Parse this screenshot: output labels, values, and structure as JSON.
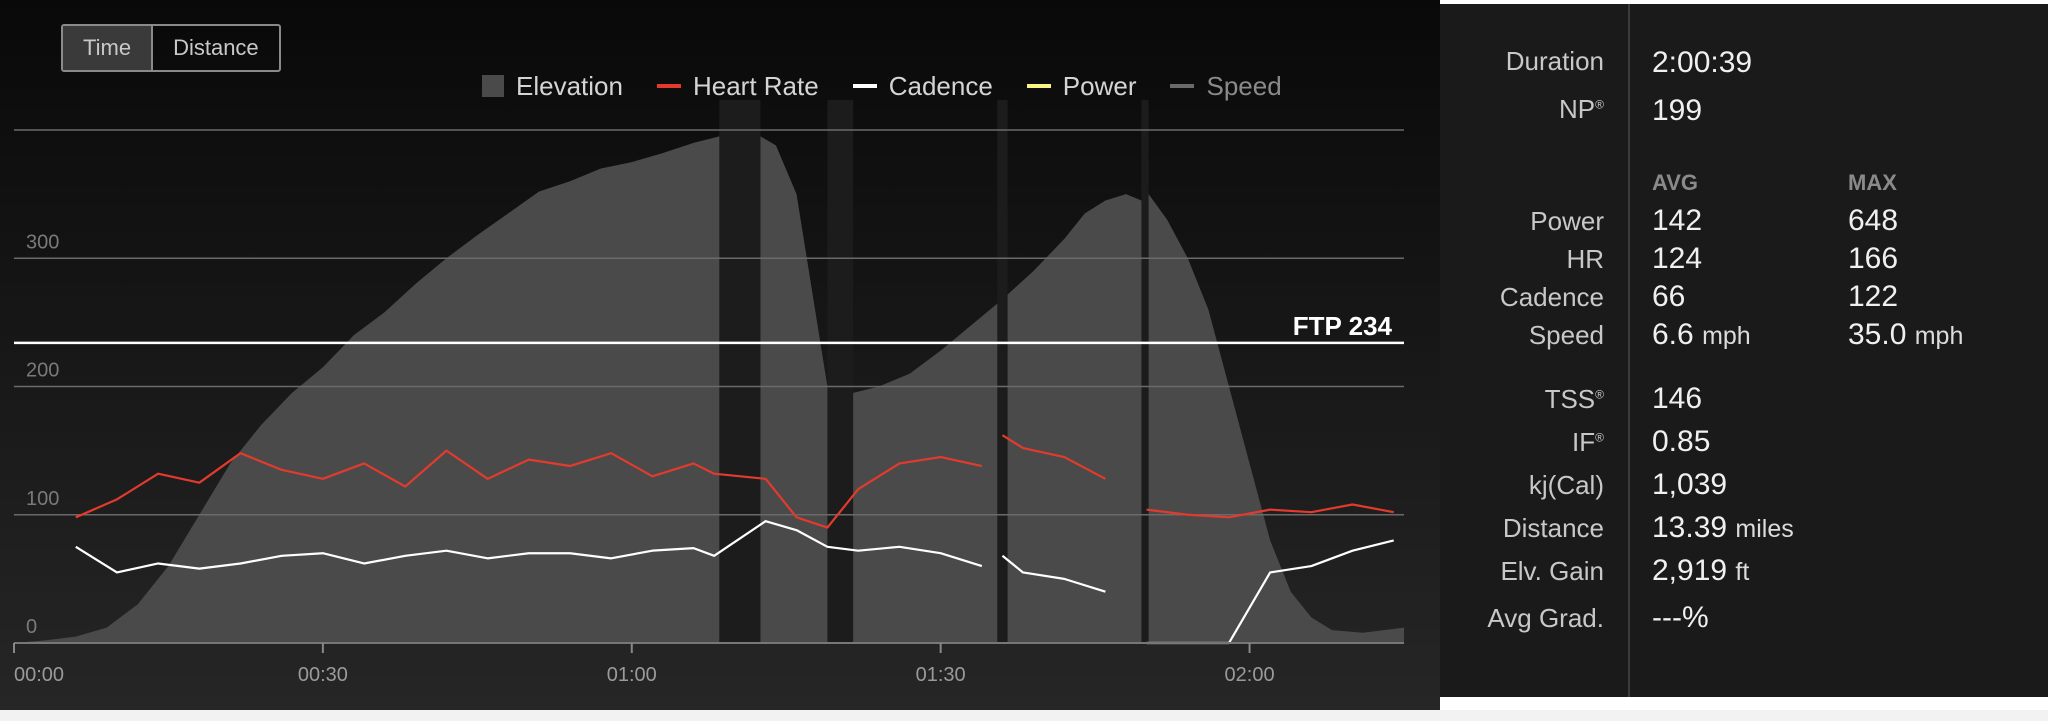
{
  "toggle": {
    "time_label": "Time",
    "distance_label": "Distance",
    "active": "Time"
  },
  "legend": [
    {
      "label": "Elevation",
      "color": "#4a4a4a",
      "kind": "square"
    },
    {
      "label": "Heart Rate",
      "color": "#e23b2e",
      "kind": "line"
    },
    {
      "label": "Cadence",
      "color": "#ffffff",
      "kind": "line"
    },
    {
      "label": "Power",
      "color": "#fbf484",
      "kind": "line"
    },
    {
      "label": "Speed",
      "color": "#6a6a6a",
      "kind": "line",
      "muted": true
    }
  ],
  "stats": {
    "duration_label": "Duration",
    "duration": "2:00:39",
    "np_label": "NP",
    "np": "199",
    "avg_header": "AVG",
    "max_header": "MAX",
    "power_label": "Power",
    "power_avg": "142",
    "power_max": "648",
    "hr_label": "HR",
    "hr_avg": "124",
    "hr_max": "166",
    "cadence_label": "Cadence",
    "cadence_avg": "66",
    "cadence_max": "122",
    "speed_label": "Speed",
    "speed_avg": "6.6",
    "speed_max": "35.0",
    "speed_unit": "mph",
    "tss_label": "TSS",
    "tss": "146",
    "if_label": "IF",
    "if": "0.85",
    "kj_label": "kj(Cal)",
    "kj": "1,039",
    "distance_label": "Distance",
    "distance": "13.39",
    "distance_unit": "miles",
    "elv_label": "Elv. Gain",
    "elv": "2,919",
    "elv_unit": "ft",
    "grad_label": "Avg Grad.",
    "grad": "---%",
    "reg": "®"
  },
  "chart_data": {
    "type": "line",
    "x_unit": "minutes",
    "xlim": [
      0,
      135
    ],
    "ylim": [
      0,
      400
    ],
    "y_ticks": [
      0,
      100,
      200,
      300
    ],
    "x_ticks": [
      "00:00",
      "00:30",
      "01:00",
      "01:30",
      "02:00"
    ],
    "x_tick_values": [
      0,
      30,
      60,
      90,
      120
    ],
    "reference_line": {
      "label": "FTP 234",
      "value": 234
    },
    "gaps": [
      [
        68.5,
        72.5
      ],
      [
        79,
        81.5
      ],
      [
        95.5,
        96.5
      ],
      [
        109.5,
        110.2
      ]
    ],
    "series": [
      {
        "name": "Elevation",
        "color": "#4a4a4a",
        "x": [
          0,
          3,
          6,
          9,
          12,
          15,
          18,
          21,
          24,
          27,
          30,
          33,
          36,
          39,
          42,
          45,
          48,
          51,
          54,
          57,
          60,
          63,
          66,
          68.5,
          72.5,
          74,
          76,
          78,
          79,
          81.5,
          84,
          87,
          90,
          93,
          96,
          99,
          102,
          104,
          106,
          108,
          109.5,
          110.2,
          112,
          114,
          116,
          118,
          120,
          122,
          124,
          126,
          128,
          131,
          135
        ],
        "y": [
          0,
          2,
          5,
          12,
          30,
          60,
          100,
          140,
          170,
          195,
          215,
          240,
          258,
          280,
          300,
          318,
          335,
          352,
          360,
          370,
          375,
          382,
          390,
          395,
          395,
          388,
          350,
          250,
          200,
          195,
          200,
          210,
          228,
          248,
          268,
          290,
          315,
          335,
          345,
          350,
          345,
          350,
          330,
          300,
          260,
          200,
          140,
          80,
          40,
          20,
          10,
          8,
          12
        ]
      },
      {
        "name": "Heart Rate",
        "color": "#e23b2e",
        "x": [
          6,
          10,
          14,
          18,
          22,
          26,
          30,
          34,
          38,
          42,
          46,
          50,
          54,
          58,
          62,
          66,
          68,
          73,
          76,
          79,
          82,
          86,
          90,
          94,
          96,
          98,
          102,
          106,
          110,
          114,
          118,
          122,
          126,
          130,
          134
        ],
        "y": [
          98,
          112,
          132,
          125,
          148,
          135,
          128,
          140,
          122,
          150,
          128,
          143,
          138,
          148,
          130,
          140,
          132,
          128,
          98,
          90,
          120,
          140,
          145,
          138,
          162,
          152,
          145,
          128,
          104,
          100,
          98,
          104,
          102,
          108,
          102
        ]
      },
      {
        "name": "Cadence",
        "color": "#ffffff",
        "x": [
          6,
          10,
          14,
          18,
          22,
          26,
          30,
          34,
          38,
          42,
          46,
          50,
          54,
          58,
          62,
          66,
          68,
          73,
          76,
          79,
          82,
          86,
          90,
          94,
          96,
          98,
          102,
          106,
          110,
          114,
          118,
          122,
          126,
          130,
          134
        ],
        "y": [
          75,
          55,
          62,
          58,
          62,
          68,
          70,
          62,
          68,
          72,
          66,
          70,
          70,
          66,
          72,
          74,
          68,
          95,
          88,
          75,
          72,
          75,
          70,
          60,
          68,
          55,
          50,
          40,
          0,
          0,
          0,
          55,
          60,
          72,
          80
        ]
      }
    ]
  }
}
